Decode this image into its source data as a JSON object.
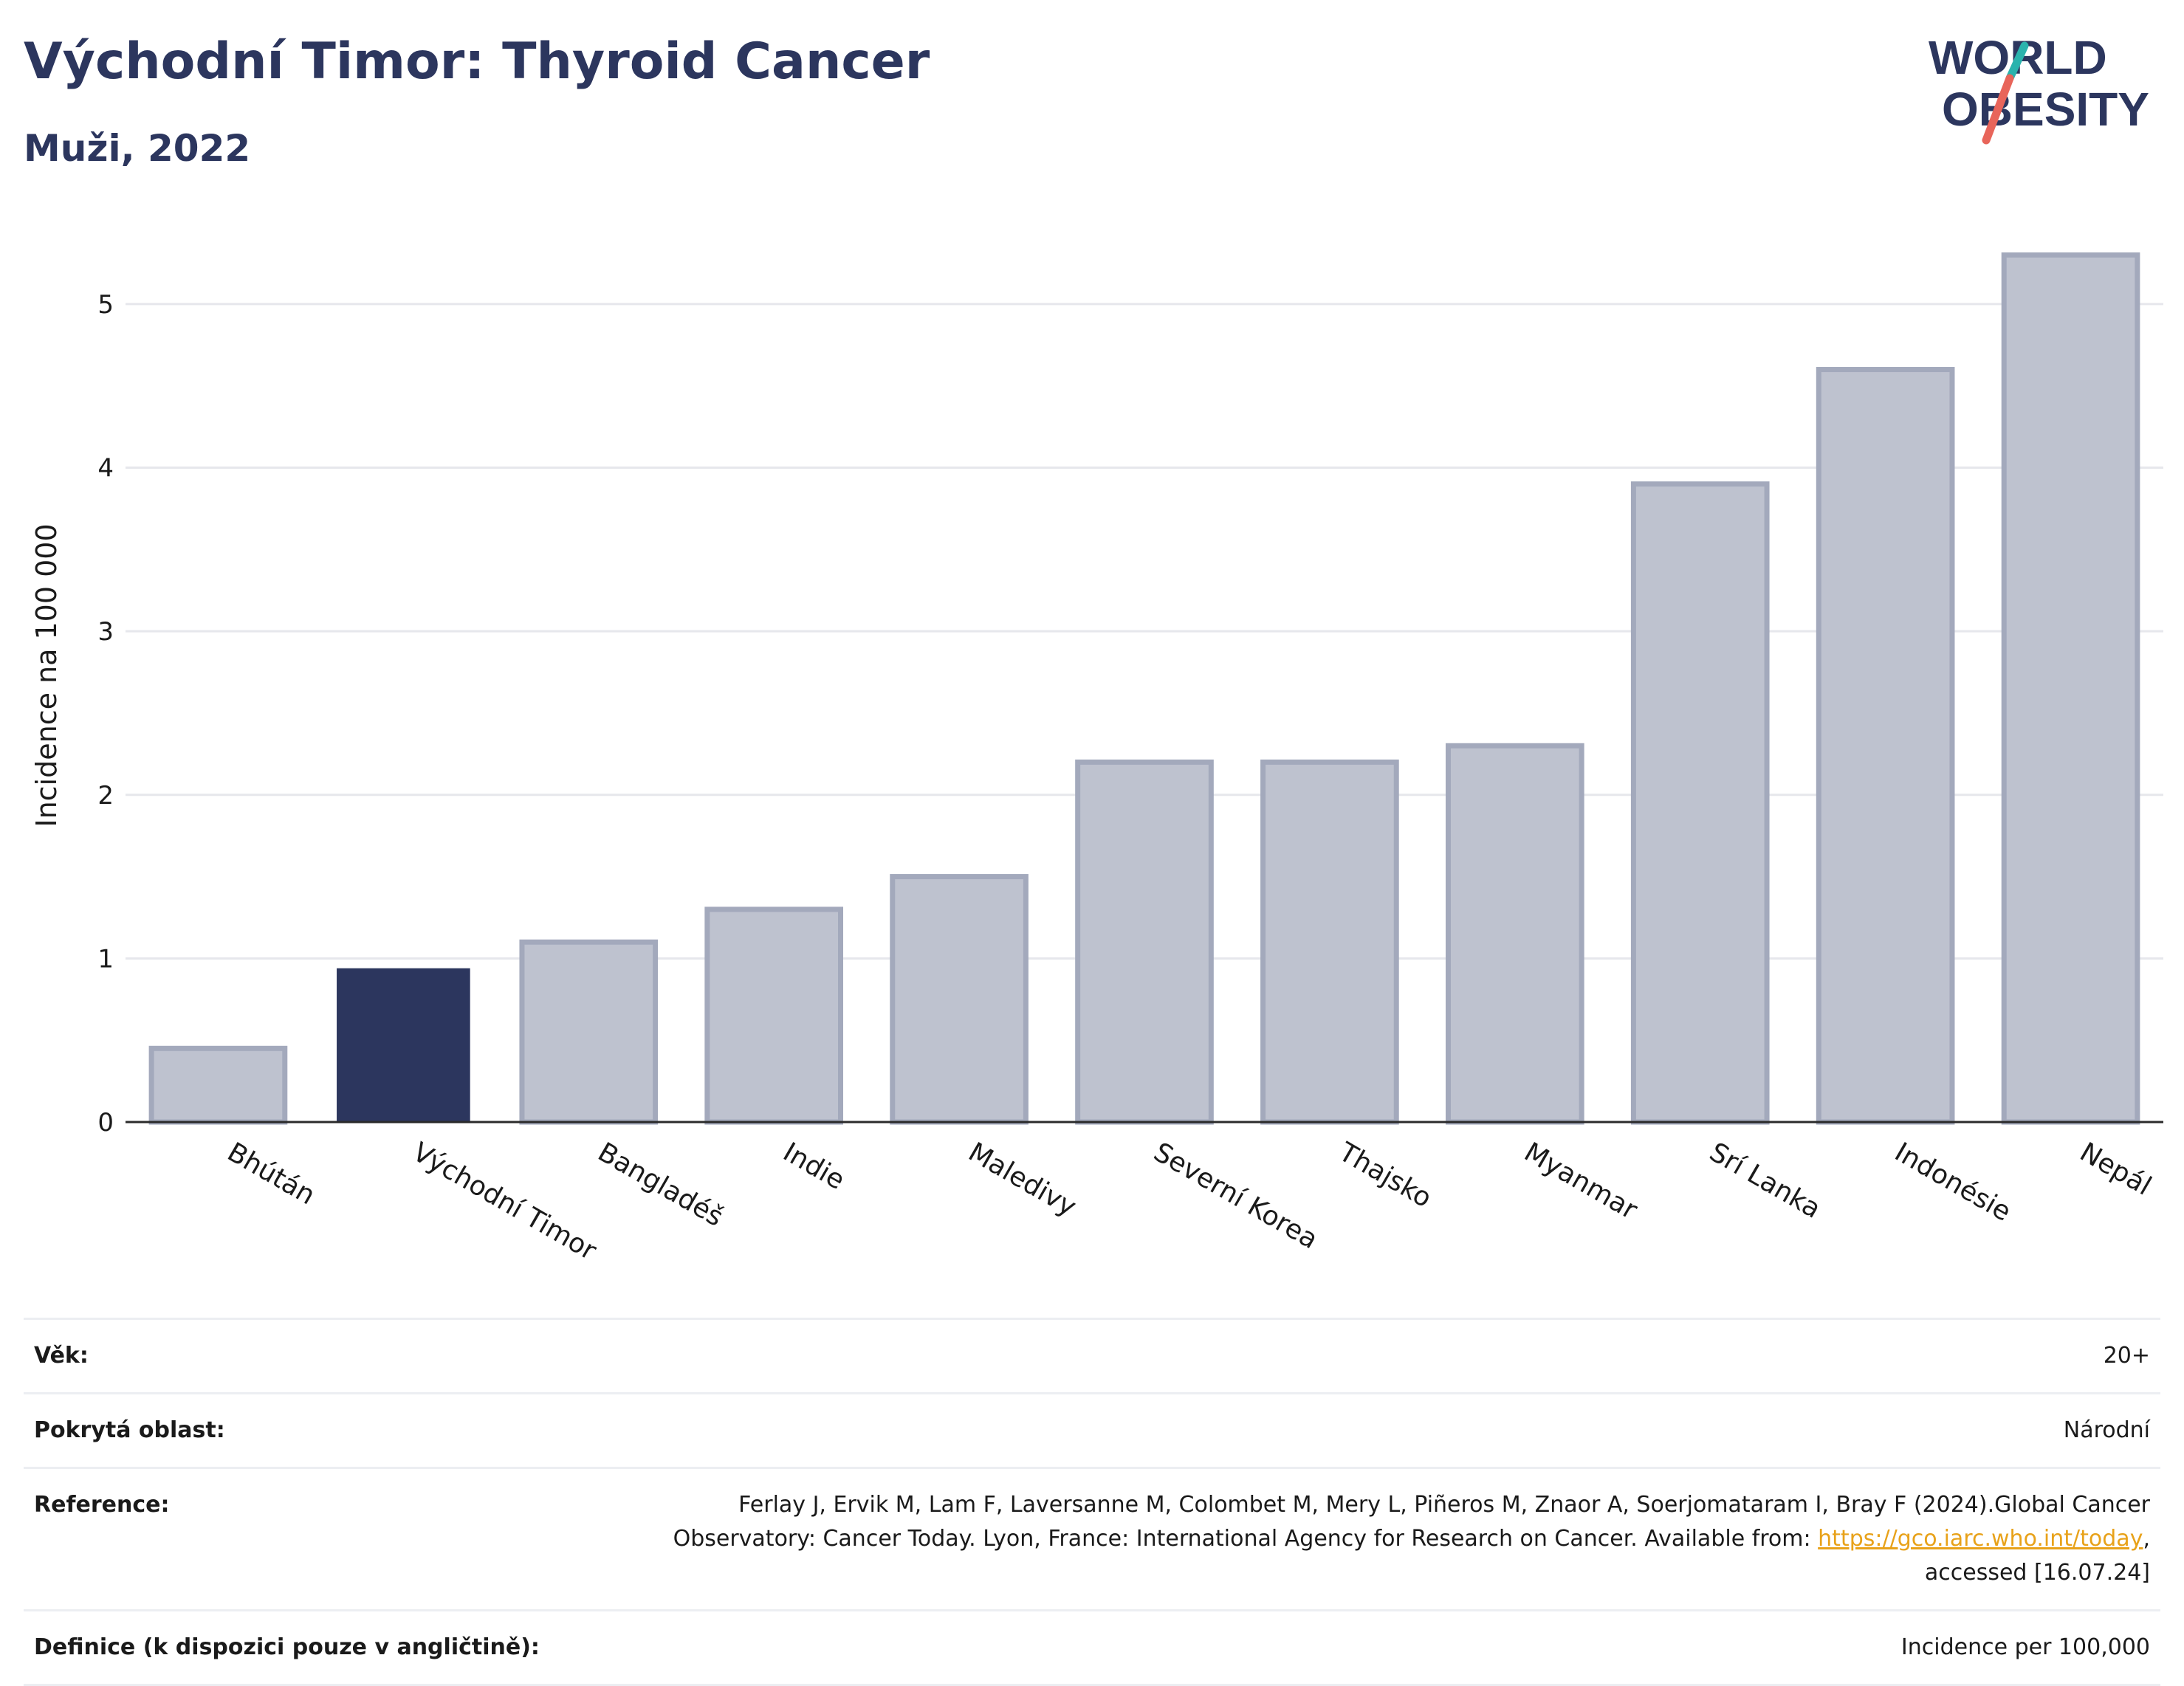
{
  "header": {
    "title": "Východní Timor: Thyroid Cancer",
    "subtitle": "Muži, 2022"
  },
  "logo": {
    "line1": "WORLD",
    "line2": "OBESITY",
    "colors": {
      "text": "#2c365e",
      "slash_teal": "#2bb3ad",
      "slash_coral": "#e8655a"
    }
  },
  "chart_data": {
    "type": "bar",
    "categories": [
      "Bhútán",
      "Východní Timor",
      "Bangladéš",
      "Indie",
      "Maledivy",
      "Severní Korea",
      "Thajsko",
      "Myanmar",
      "Srí Lanka",
      "Indonésie",
      "Nepál"
    ],
    "values": [
      0.45,
      0.94,
      1.1,
      1.3,
      1.5,
      2.2,
      2.2,
      2.3,
      3.9,
      4.6,
      5.3
    ],
    "highlight": "Východní Timor",
    "ylabel": "Incidence na 100 000",
    "xlabel": "",
    "ylim": [
      0,
      5.55
    ],
    "yticks": [
      0,
      1,
      2,
      3,
      4,
      5
    ],
    "grid": true,
    "colors": {
      "bar": "#bec2cf",
      "bar_edge": "#a3a9bc",
      "highlight": "#2c365e",
      "grid": "#e6e7ec",
      "axis": "#2b2b2b"
    }
  },
  "info": [
    {
      "label": "Věk:",
      "value": "20+"
    },
    {
      "label": "Pokrytá oblast:",
      "value": "Národní"
    },
    {
      "label": "Reference:",
      "value_before_link": "Ferlay J, Ervik M, Lam F, Laversanne M, Colombet M, Mery L, Piñeros M, Znaor A, Soerjomataram I, Bray F (2024).Global Cancer Observatory: Cancer Today. Lyon, France: International Agency for Research on Cancer. Available from: ",
      "link": "https://gco.iarc.who.int/today",
      "value_after_link": ", accessed [16.07.24]"
    },
    {
      "label": "Definice (k dispozici pouze v angličtině):",
      "value": "Incidence per 100,000"
    }
  ]
}
